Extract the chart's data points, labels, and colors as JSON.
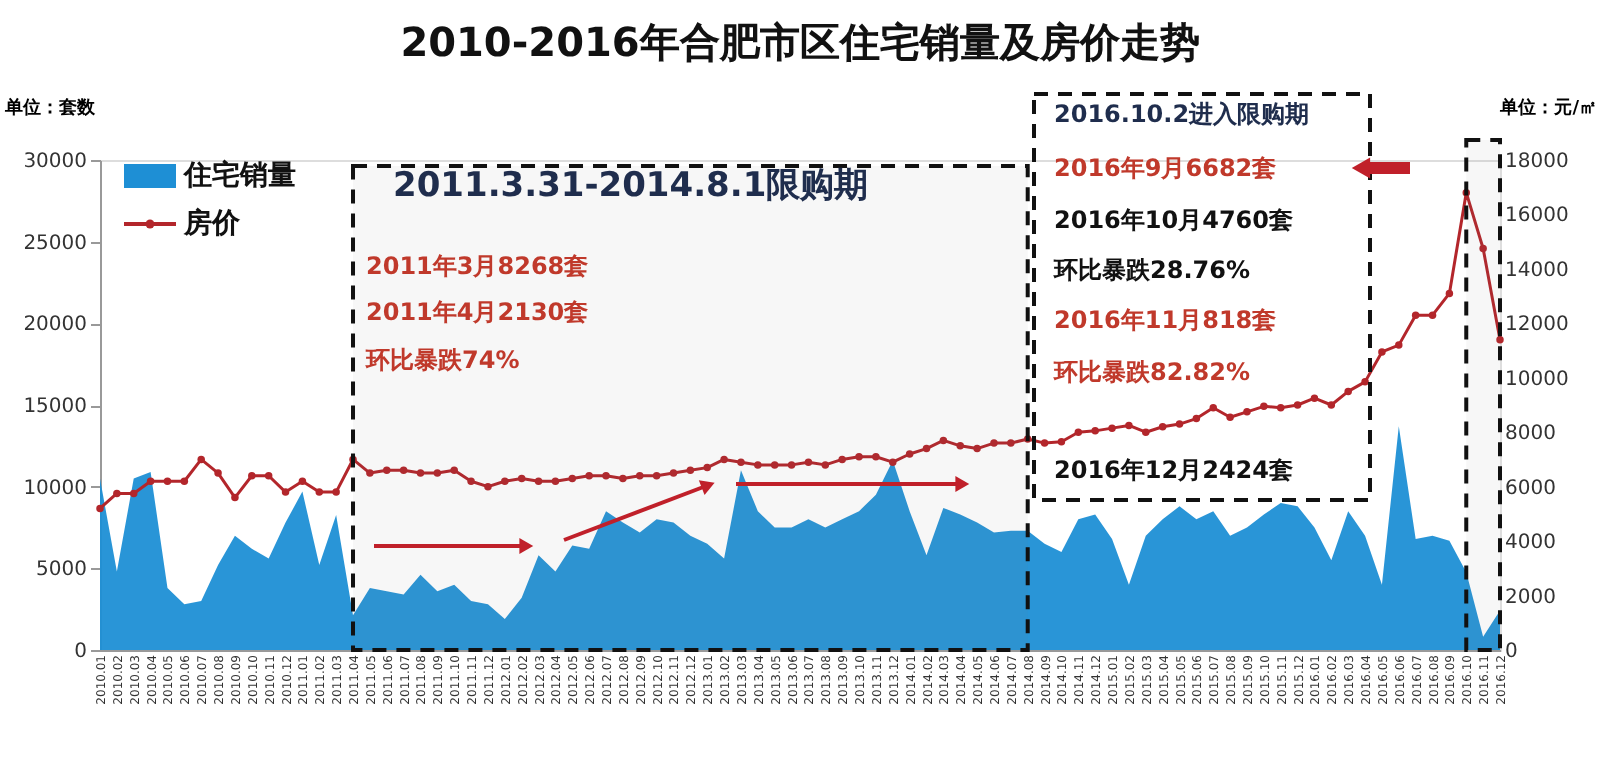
{
  "chart_data": {
    "type": "area",
    "title": "2010-2016年合肥市区住宅销量及房价走势",
    "ylabel": "单位：套数",
    "y2label": "单位：元/㎡",
    "categories": [
      "2010.01",
      "2010.02",
      "2010.03",
      "2010.04",
      "2010.05",
      "2010.06",
      "2010.07",
      "2010.08",
      "2010.09",
      "2010.10",
      "2010.11",
      "2010.12",
      "2011.01",
      "2011.02",
      "2011.03",
      "2011.04",
      "2011.05",
      "2011.06",
      "2011.07",
      "2011.08",
      "2011.09",
      "2011.10",
      "2011.11",
      "2011.12",
      "2012.01",
      "2012.02",
      "2012.03",
      "2012.04",
      "2012.05",
      "2012.06",
      "2012.07",
      "2012.08",
      "2012.09",
      "2012.10",
      "2012.11",
      "2012.12",
      "2013.01",
      "2013.02",
      "2013.03",
      "2013.04",
      "2013.05",
      "2013.06",
      "2013.07",
      "2013.08",
      "2013.09",
      "2013.10",
      "2013.11",
      "2013.12",
      "2014.01",
      "2014.02",
      "2014.03",
      "2014.04",
      "2014.05",
      "2014.06",
      "2014.07",
      "2014.08",
      "2014.09",
      "2014.10",
      "2014.11",
      "2014.12",
      "2015.01",
      "2015.02",
      "2015.03",
      "2015.04",
      "2015.05",
      "2015.06",
      "2015.07",
      "2015.08",
      "2015.09",
      "2015.10",
      "2015.11",
      "2015.12",
      "2016.01",
      "2016.02",
      "2016.03",
      "2016.04",
      "2016.05",
      "2016.06",
      "2016.07",
      "2016.08",
      "2016.09",
      "2016.10",
      "2016.11",
      "2016.12"
    ],
    "series": [
      {
        "name": "住宅销量",
        "color": "#1e8fd5",
        "values": [
          10500,
          4800,
          10500,
          10900,
          3800,
          2800,
          3000,
          5200,
          7000,
          6200,
          5600,
          7800,
          9700,
          5200,
          8268,
          2130,
          3800,
          3600,
          3400,
          4600,
          3600,
          4000,
          3000,
          2800,
          1900,
          3200,
          5800,
          4800,
          6400,
          6200,
          8500,
          7800,
          7200,
          8000,
          7800,
          7000,
          6500,
          5600,
          11000,
          8500,
          7500,
          7500,
          8000,
          7500,
          8000,
          8500,
          9500,
          11600,
          8500,
          5800,
          8700,
          8300,
          7800,
          7200,
          7300,
          7300,
          6500,
          6000,
          8000,
          8300,
          6800,
          4000,
          7000,
          8000,
          8800,
          8000,
          8500,
          7000,
          7500,
          8300,
          9000,
          8800,
          7500,
          5500,
          8500,
          7000,
          4000,
          13700,
          6800,
          7000,
          6682,
          4760,
          818,
          2424
        ]
      },
      {
        "name": "房价",
        "type": "line",
        "axis": "y2",
        "marker": "circle",
        "color": "#b3262b",
        "values": [
          5200,
          5750,
          5750,
          6200,
          6200,
          6200,
          7000,
          6500,
          5600,
          6400,
          6400,
          5800,
          6200,
          5800,
          5800,
          7000,
          6500,
          6600,
          6600,
          6500,
          6500,
          6600,
          6200,
          6000,
          6200,
          6300,
          6200,
          6200,
          6300,
          6400,
          6400,
          6300,
          6400,
          6400,
          6500,
          6600,
          6700,
          7000,
          6900,
          6800,
          6800,
          6800,
          6900,
          6800,
          7000,
          7100,
          7100,
          6900,
          7200,
          7400,
          7700,
          7500,
          7400,
          7600,
          7600,
          7750,
          7600,
          7650,
          8000,
          8050,
          8150,
          8250,
          8000,
          8200,
          8300,
          8500,
          8900,
          8550,
          8750,
          8950,
          8900,
          9000,
          9250,
          9000,
          9500,
          9850,
          10950,
          11200,
          12300,
          12300,
          13100,
          16800,
          14750,
          11400
        ]
      }
    ],
    "ylim": [
      0,
      30000
    ],
    "yticks": [
      0,
      5000,
      10000,
      15000,
      20000,
      25000,
      30000
    ],
    "y2lim": [
      0,
      18000
    ],
    "y2ticks": [
      0,
      2000,
      4000,
      6000,
      8000,
      10000,
      12000,
      14000,
      16000,
      18000
    ],
    "legend": "top left",
    "bands": [
      {
        "axis": "x",
        "from": "2011.04",
        "to": "2014.08",
        "label": "2011.3.31-2014.8.1限购期"
      },
      {
        "axis": "x",
        "from": "2016.10",
        "to": "2016.12"
      }
    ],
    "annotations": [
      "2016.10.2进入限购期",
      "2011年3月8268套",
      "2011年4月2130套",
      "环比暴跌74%",
      "2016年9月6682套",
      "2016年10月4760套",
      "环比暴跌28.76%",
      "2016年11月818套",
      "环比暴跌82.82%",
      "2016年12月2424套"
    ]
  }
}
